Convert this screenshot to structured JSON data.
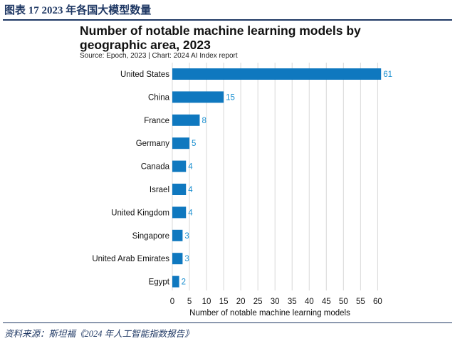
{
  "figure": {
    "caption": "图表 17   2023 年各国大模型数量",
    "source": "资料来源：斯坦福《2024 年人工智能指数报告》"
  },
  "chart_data": {
    "type": "bar",
    "orientation": "horizontal",
    "title": "Number of notable machine learning models by geographic area, 2023",
    "subtitle": "Source: Epoch, 2023 | Chart: 2024 AI Index report",
    "xlabel": "Number of notable machine learning models",
    "ylabel": "",
    "categories": [
      "United States",
      "China",
      "France",
      "Germany",
      "Canada",
      "Israel",
      "United Kingdom",
      "Singapore",
      "United Arab Emirates",
      "Egypt"
    ],
    "values": [
      61,
      15,
      8,
      5,
      4,
      4,
      4,
      3,
      3,
      2
    ],
    "xlim": [
      0,
      62
    ],
    "xticks": [
      0,
      5,
      10,
      15,
      20,
      25,
      30,
      35,
      40,
      45,
      50,
      55,
      60
    ],
    "grid": "vertical",
    "bar_color": "#0f78bf",
    "label_color": "#1a8fd0",
    "grid_color": "#d8d8d8"
  }
}
